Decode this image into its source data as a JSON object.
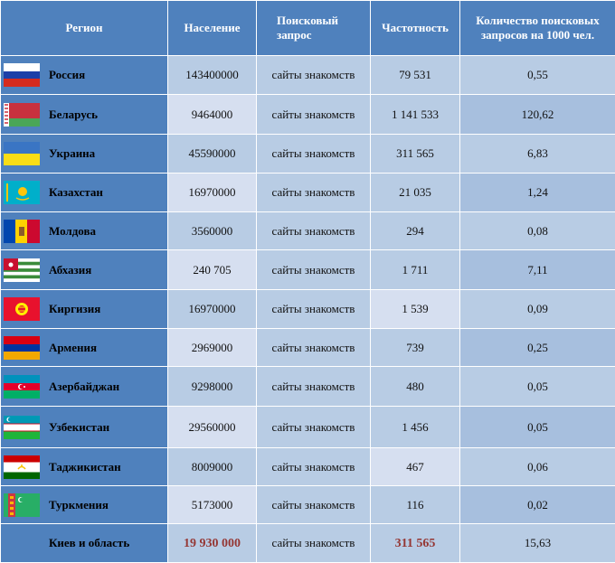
{
  "headers": {
    "region": "Регион",
    "population": "Население",
    "query": "Поисковый запрос",
    "frequency": "Частотность",
    "per1000": "Количество поисковых запросов на 1000 чел."
  },
  "rows": [
    {
      "region": "Россия",
      "flag": "russia-flag",
      "population": "143400000",
      "query": "сайты знакомств",
      "frequency": "79 531",
      "per1000": "0,55"
    },
    {
      "region": "Беларусь",
      "flag": "belarus-flag",
      "population": "9464000",
      "query": "сайты знакомств",
      "frequency": "1 141 533",
      "per1000": "120,62"
    },
    {
      "region": "Украина",
      "flag": "ukraine-flag",
      "population": "45590000",
      "query": "сайты знакомств",
      "frequency": "311 565",
      "per1000": "6,83"
    },
    {
      "region": "Казахстан",
      "flag": "kazakhstan-flag",
      "population": "16970000",
      "query": "сайты знакомств",
      "frequency": "21 035",
      "per1000": "1,24"
    },
    {
      "region": "Молдова",
      "flag": "moldova-flag",
      "population": "3560000",
      "query": "сайты знакомств",
      "frequency": "294",
      "per1000": "0,08"
    },
    {
      "region": "Абхазия",
      "flag": "abkhazia-flag",
      "population": "240 705",
      "query": "сайты знакомств",
      "frequency": "1 711",
      "per1000": "7,11"
    },
    {
      "region": "Киргизия",
      "flag": "kyrgyzstan-flag",
      "population": "16970000",
      "query": "сайты знакомств",
      "frequency": "1 539",
      "per1000": "0,09"
    },
    {
      "region": "Армения",
      "flag": "armenia-flag",
      "population": "2969000",
      "query": "сайты знакомств",
      "frequency": "739",
      "per1000": "0,25"
    },
    {
      "region": "Азербайджан",
      "flag": "azerbaijan-flag",
      "population": "9298000",
      "query": "сайты знакомств",
      "frequency": "480",
      "per1000": "0,05"
    },
    {
      "region": "Узбекистан",
      "flag": "uzbekistan-flag",
      "population": "29560000",
      "query": "сайты знакомств",
      "frequency": "1 456",
      "per1000": "0,05"
    },
    {
      "region": "Таджикистан",
      "flag": "tajikistan-flag",
      "population": "8009000",
      "query": "сайты знакомств",
      "frequency": "467",
      "per1000": "0,06"
    },
    {
      "region": "Туркмения",
      "flag": "turkmenistan-flag",
      "population": "5173000",
      "query": "сайты знакомств",
      "frequency": "116",
      "per1000": "0,02"
    }
  ],
  "summary": {
    "region": "Киев и область",
    "population": "19 930 000",
    "query": "сайты знакомств",
    "frequency": "311 565",
    "per1000": "15,63"
  }
}
